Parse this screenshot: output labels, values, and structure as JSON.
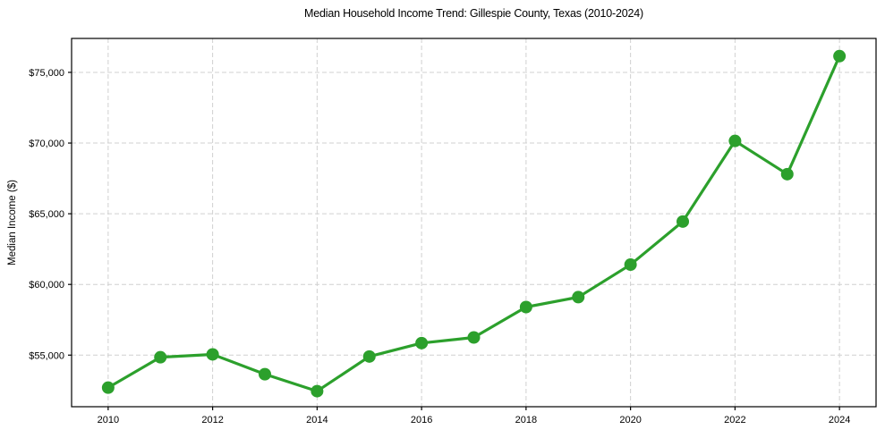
{
  "title": "Median Household Income Trend: Gillespie County, Texas (2010-2024)",
  "chart_data": {
    "type": "line",
    "title": "Median Household Income Trend: Gillespie County, Texas (2010-2024)",
    "xlabel": "",
    "ylabel": "Median Income ($)",
    "x": [
      2010,
      2011,
      2012,
      2013,
      2014,
      2015,
      2016,
      2017,
      2018,
      2019,
      2020,
      2021,
      2022,
      2023,
      2024
    ],
    "values": [
      52700,
      54850,
      55050,
      53650,
      52450,
      54900,
      55850,
      56250,
      58400,
      59100,
      61400,
      64450,
      70150,
      67800,
      76150
    ],
    "series_name": "Median Household Income",
    "x_tick_values": [
      2010,
      2012,
      2014,
      2016,
      2018,
      2020,
      2022,
      2024
    ],
    "x_tick_labels": [
      "2010",
      "2012",
      "2014",
      "2016",
      "2018",
      "2020",
      "2022",
      "2024"
    ],
    "y_tick_values": [
      55000,
      60000,
      65000,
      70000,
      75000
    ],
    "y_tick_labels": [
      "$55,000",
      "$60,000",
      "$65,000",
      "$70,000",
      "$75,000"
    ],
    "xlim": [
      2009.3,
      2024.7
    ],
    "ylim": [
      51350,
      77400
    ],
    "grid": true,
    "grid_style": "dashed",
    "legend": "none",
    "line_color": "#2ca02c",
    "marker_color": "#2ca02c",
    "grid_color": "#d0d0d0",
    "spine_color": "#000000",
    "background_color": "#ffffff",
    "marker": "circle"
  }
}
